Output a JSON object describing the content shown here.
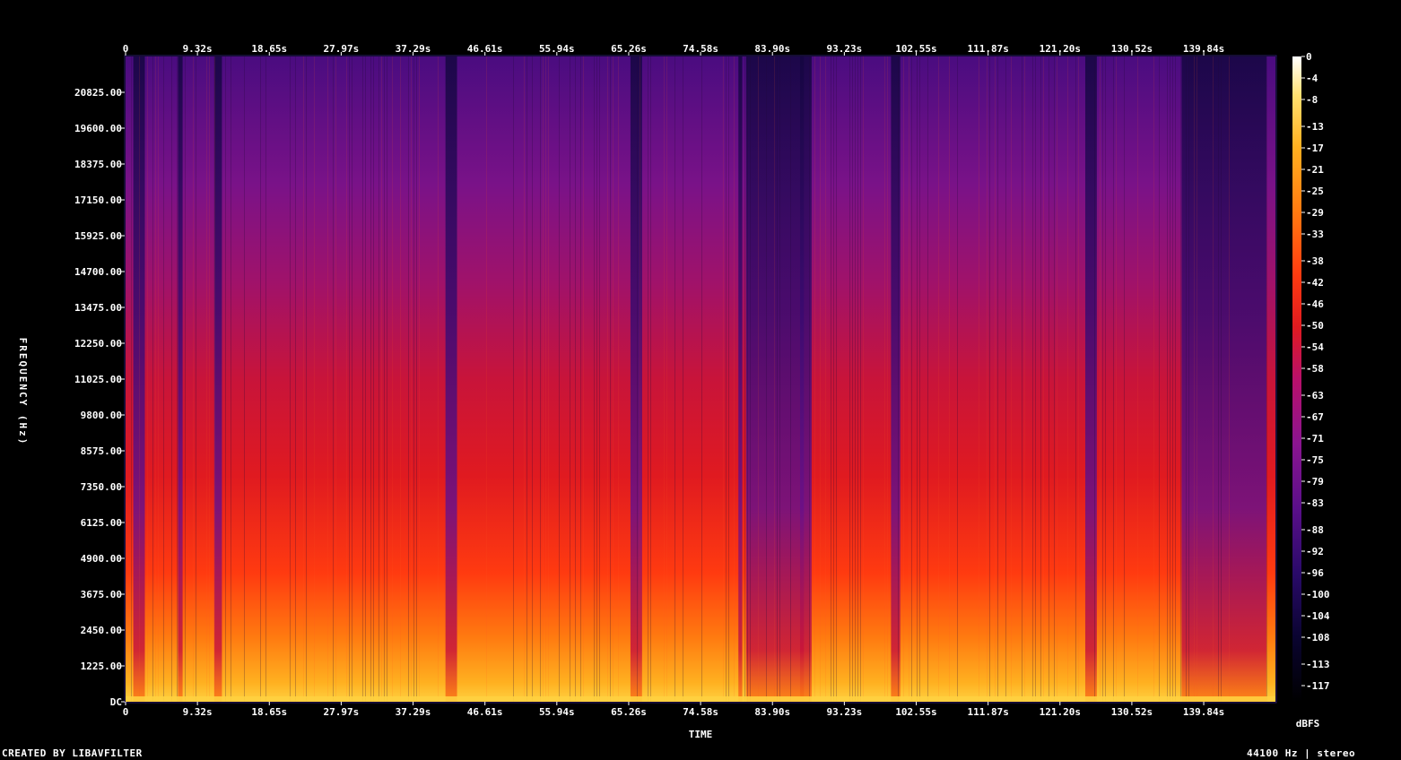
{
  "chart_data": {
    "type": "heatmap",
    "xlabel": "TIME",
    "ylabel": "FREQUENCY (Hz)",
    "colorbar_unit": "dBFS",
    "x_ticks": [
      "0",
      "9.32s",
      "18.65s",
      "27.97s",
      "37.29s",
      "46.61s",
      "55.94s",
      "65.26s",
      "74.58s",
      "83.90s",
      "93.23s",
      "102.55s",
      "111.87s",
      "121.20s",
      "130.52s",
      "139.84s"
    ],
    "x_range_seconds": [
      0,
      149.17
    ],
    "y_ticks": [
      "DC",
      "1225.00",
      "2450.00",
      "3675.00",
      "4900.00",
      "6125.00",
      "7350.00",
      "8575.00",
      "9800.00",
      "11025.00",
      "12250.00",
      "13475.00",
      "14700.00",
      "15925.00",
      "17150.00",
      "18375.00",
      "19600.00",
      "20825.00"
    ],
    "y_range_hz": [
      0,
      22050
    ],
    "colorbar_ticks": [
      "0",
      "-4",
      "-8",
      "-13",
      "-17",
      "-21",
      "-25",
      "-29",
      "-33",
      "-38",
      "-42",
      "-46",
      "-50",
      "-54",
      "-58",
      "-63",
      "-67",
      "-71",
      "-75",
      "-79",
      "-83",
      "-88",
      "-92",
      "-96",
      "-100",
      "-104",
      "-108",
      "-113",
      "-117"
    ],
    "colorbar_range_dbfs": [
      -120,
      0
    ],
    "colormap": [
      "#000000",
      "#0a0430",
      "#2a0a6a",
      "#5a0f8a",
      "#8a1590",
      "#b8106a",
      "#e01a20",
      "#ff3a10",
      "#ff7a10",
      "#ffb020",
      "#ffe070",
      "#ffffff"
    ],
    "quiet_segments_seconds": [
      [
        1,
        2.5
      ],
      [
        6.8,
        7.4
      ],
      [
        11.5,
        12.5
      ],
      [
        41.5,
        43
      ],
      [
        65.5,
        67
      ],
      [
        79.5,
        80
      ],
      [
        80.5,
        88
      ],
      [
        87.5,
        89
      ],
      [
        99.3,
        100.5
      ],
      [
        124.5,
        126
      ],
      [
        137,
        148
      ]
    ],
    "grid": false
  },
  "footer": {
    "left": "CREATED BY LIBAVFILTER",
    "right": "44100 Hz | stereo"
  }
}
